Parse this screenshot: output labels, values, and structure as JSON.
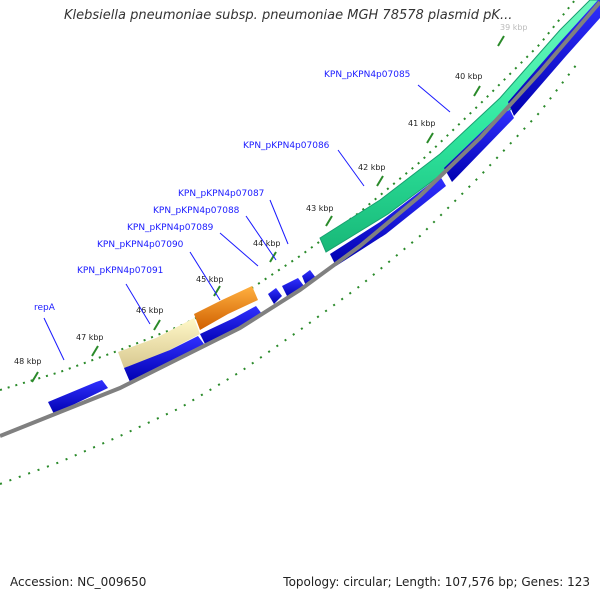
{
  "title": "Klebsiella pneumoniae subsp. pneumoniae MGH 78578 plasmid pK...",
  "footer": {
    "accession": "Accession: NC_009650",
    "stats": "Topology: circular; Length: 107,576 bp; Genes: 123"
  },
  "colors": {
    "gene": "#1010e0",
    "highlight_green": "#30e8a0",
    "highlight_orange": "#f08010",
    "highlight_yellow": "#f0e8a0",
    "backbone": "#808080",
    "tick": "#2a8a2a",
    "label": "#1a1aff"
  },
  "ticks": [
    {
      "kbp": 39,
      "label": "39 kbp"
    },
    {
      "kbp": 40,
      "label": "40 kbp"
    },
    {
      "kbp": 41,
      "label": "41 kbp"
    },
    {
      "kbp": 42,
      "label": "42 kbp"
    },
    {
      "kbp": 43,
      "label": "43 kbp"
    },
    {
      "kbp": 44,
      "label": "44 kbp"
    },
    {
      "kbp": 45,
      "label": "45 kbp"
    },
    {
      "kbp": 46,
      "label": "46 kbp"
    },
    {
      "kbp": 47,
      "label": "47 kbp"
    },
    {
      "kbp": 48,
      "label": "48 kbp"
    }
  ],
  "gene_labels": [
    "KPN_pKPN4p07085",
    "KPN_pKPN4p07086",
    "KPN_pKPN4p07087",
    "KPN_pKPN4p07088",
    "KPN_pKPN4p07089",
    "KPN_pKPN4p07090",
    "KPN_pKPN4p07091",
    "repA"
  ]
}
